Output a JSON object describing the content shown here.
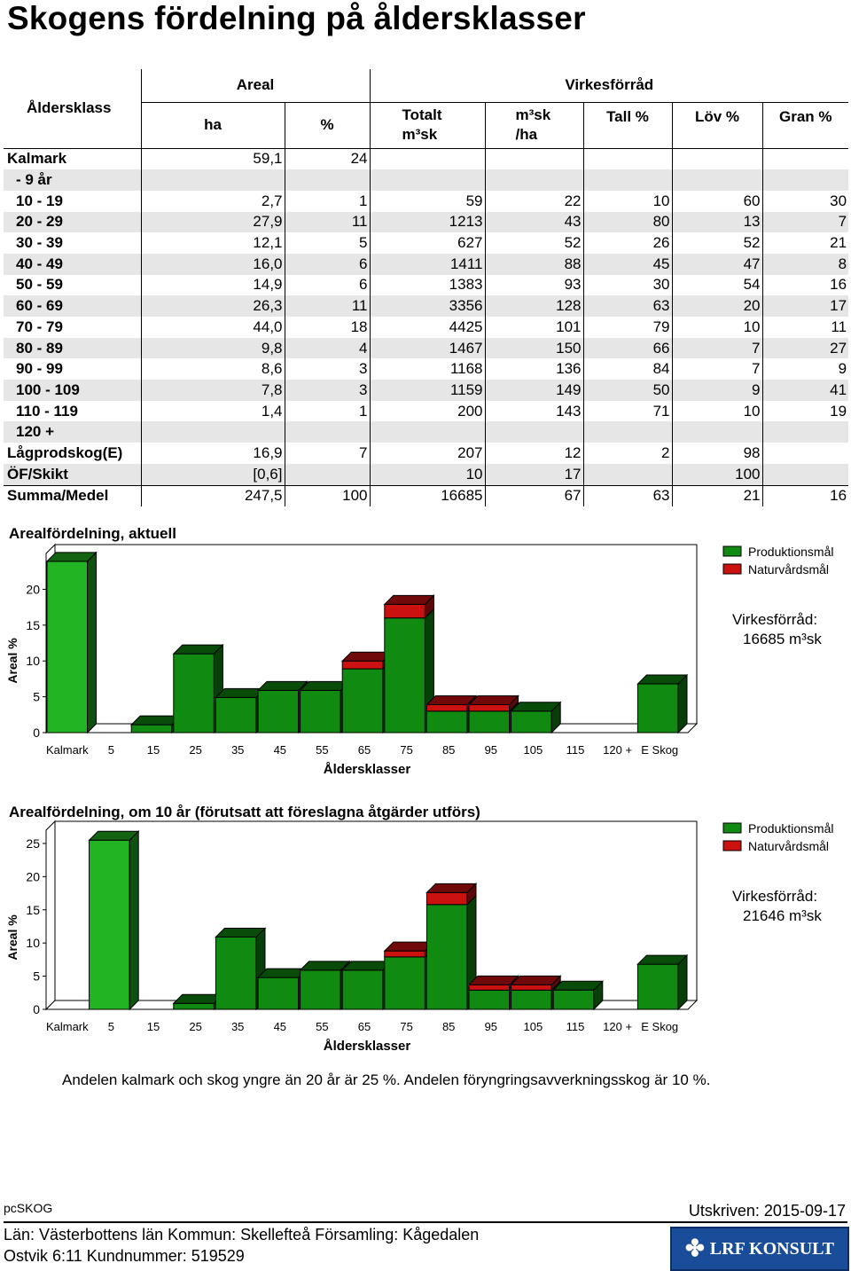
{
  "title": "Skogens fördelning på åldersklasser",
  "table": {
    "headers": {
      "age_class": "Åldersklass",
      "areal": "Areal",
      "virkesforrad": "Virkesförråd",
      "ha": "ha",
      "percent": "%",
      "totalt": "Totalt",
      "totalt_unit": "m³sk",
      "m3sk": "m³sk",
      "per_ha": "/ha",
      "tall": "Tall %",
      "lov": "Löv %",
      "gran": "Gran %"
    },
    "rows": [
      {
        "label": "Kalmark",
        "ha": "59,1",
        "pct": "24",
        "tot": "",
        "m3": "",
        "tall": "",
        "lov": "",
        "gran": ""
      },
      {
        "label": "- 9 år",
        "ha": "",
        "pct": "",
        "tot": "",
        "m3": "",
        "tall": "",
        "lov": "",
        "gran": ""
      },
      {
        "label": "10 - 19",
        "ha": "2,7",
        "pct": "1",
        "tot": "59",
        "m3": "22",
        "tall": "10",
        "lov": "60",
        "gran": "30"
      },
      {
        "label": "20 - 29",
        "ha": "27,9",
        "pct": "11",
        "tot": "1213",
        "m3": "43",
        "tall": "80",
        "lov": "13",
        "gran": "7"
      },
      {
        "label": "30 - 39",
        "ha": "12,1",
        "pct": "5",
        "tot": "627",
        "m3": "52",
        "tall": "26",
        "lov": "52",
        "gran": "21"
      },
      {
        "label": "40 - 49",
        "ha": "16,0",
        "pct": "6",
        "tot": "1411",
        "m3": "88",
        "tall": "45",
        "lov": "47",
        "gran": "8"
      },
      {
        "label": "50 - 59",
        "ha": "14,9",
        "pct": "6",
        "tot": "1383",
        "m3": "93",
        "tall": "30",
        "lov": "54",
        "gran": "16"
      },
      {
        "label": "60 - 69",
        "ha": "26,3",
        "pct": "11",
        "tot": "3356",
        "m3": "128",
        "tall": "63",
        "lov": "20",
        "gran": "17"
      },
      {
        "label": "70 - 79",
        "ha": "44,0",
        "pct": "18",
        "tot": "4425",
        "m3": "101",
        "tall": "79",
        "lov": "10",
        "gran": "11"
      },
      {
        "label": "80 - 89",
        "ha": "9,8",
        "pct": "4",
        "tot": "1467",
        "m3": "150",
        "tall": "66",
        "lov": "7",
        "gran": "27"
      },
      {
        "label": "90 - 99",
        "ha": "8,6",
        "pct": "3",
        "tot": "1168",
        "m3": "136",
        "tall": "84",
        "lov": "7",
        "gran": "9"
      },
      {
        "label": "100 - 109",
        "ha": "7,8",
        "pct": "3",
        "tot": "1159",
        "m3": "149",
        "tall": "50",
        "lov": "9",
        "gran": "41"
      },
      {
        "label": "110 - 119",
        "ha": "1,4",
        "pct": "1",
        "tot": "200",
        "m3": "143",
        "tall": "71",
        "lov": "10",
        "gran": "19"
      },
      {
        "label": "120 +",
        "ha": "",
        "pct": "",
        "tot": "",
        "m3": "",
        "tall": "",
        "lov": "",
        "gran": ""
      },
      {
        "label": "Lågprodskog(E)",
        "ha": "16,9",
        "pct": "7",
        "tot": "207",
        "m3": "12",
        "tall": "2",
        "lov": "98",
        "gran": ""
      },
      {
        "label": "ÖF/Skikt",
        "ha": "[0,6]",
        "pct": "",
        "tot": "10",
        "m3": "17",
        "tall": "",
        "lov": "100",
        "gran": ""
      },
      {
        "label": "Summa/Medel",
        "ha": "247,5",
        "pct": "100",
        "tot": "16685",
        "m3": "67",
        "tall": "63",
        "lov": "21",
        "gran": "16"
      }
    ]
  },
  "chart_data": [
    {
      "type": "bar",
      "title": "Arealfördelning, aktuell",
      "xlabel": "Åldersklasser",
      "ylabel": "Areal %",
      "ylim": [
        0,
        25
      ],
      "yticks": [
        "0",
        "5",
        "10",
        "15",
        "20"
      ],
      "categories": [
        "Kalmark",
        "5",
        "15",
        "25",
        "35",
        "45",
        "55",
        "65",
        "75",
        "85",
        "95",
        "105",
        "115",
        "120 +",
        "E Skog"
      ],
      "series": [
        {
          "name": "Produktionsmål",
          "color": "#118a11",
          "values": [
            23.9,
            0,
            1.1,
            11.0,
            4.9,
            5.9,
            5.9,
            8.9,
            16.0,
            3.0,
            3.0,
            3.0,
            0,
            0,
            6.8
          ]
        },
        {
          "name": "Naturvårdsmål",
          "color": "#cc1111",
          "values": [
            0,
            0,
            0,
            0,
            0,
            0,
            0,
            1.1,
            1.9,
            0.9,
            0.9,
            0,
            0,
            0,
            0
          ]
        }
      ],
      "kalmark_color": "#22b422",
      "legend": "top-right",
      "info_label": "Virkesförråd:",
      "info_value": "16685 m³sk"
    },
    {
      "type": "bar",
      "title": "Arealfördelning, om 10 år (förutsatt att föreslagna åtgärder utförs)",
      "xlabel": "Åldersklasser",
      "ylabel": "Areal %",
      "ylim": [
        0,
        27
      ],
      "yticks": [
        "0",
        "5",
        "10",
        "15",
        "20",
        "25"
      ],
      "categories": [
        "Kalmark",
        "5",
        "15",
        "25",
        "35",
        "45",
        "55",
        "65",
        "75",
        "85",
        "95",
        "105",
        "115",
        "120 +",
        "E Skog"
      ],
      "series": [
        {
          "name": "Produktionsmål",
          "color": "#118a11",
          "values": [
            0,
            25.5,
            0,
            0.9,
            10.9,
            4.8,
            5.9,
            5.9,
            7.9,
            15.8,
            2.9,
            2.9,
            2.9,
            0,
            6.8
          ]
        },
        {
          "name": "Naturvårdsmål",
          "color": "#cc1111",
          "values": [
            0,
            0,
            0,
            0,
            0,
            0,
            0,
            0,
            0.9,
            1.8,
            0.8,
            0.8,
            0,
            0,
            0
          ]
        }
      ],
      "kalmark_color": "#22b422",
      "legend": "top-right",
      "info_label": "Virkesförråd:",
      "info_value": "21646 m³sk"
    }
  ],
  "note": "Andelen kalmark och skog yngre än 20 år är 25 %. Andelen föryngringsavverkningsskog är 10 %.",
  "footer": {
    "software": "pcSKOG",
    "date": "Utskriven: 2015-09-17",
    "location_line1": "Län: Västerbottens län   Kommun: Skellefteå   Församling: Kågedalen",
    "location_line2": "Ostvik 6:11 Kundnummer: 519529",
    "logo_text": "LRF KONSULT"
  }
}
